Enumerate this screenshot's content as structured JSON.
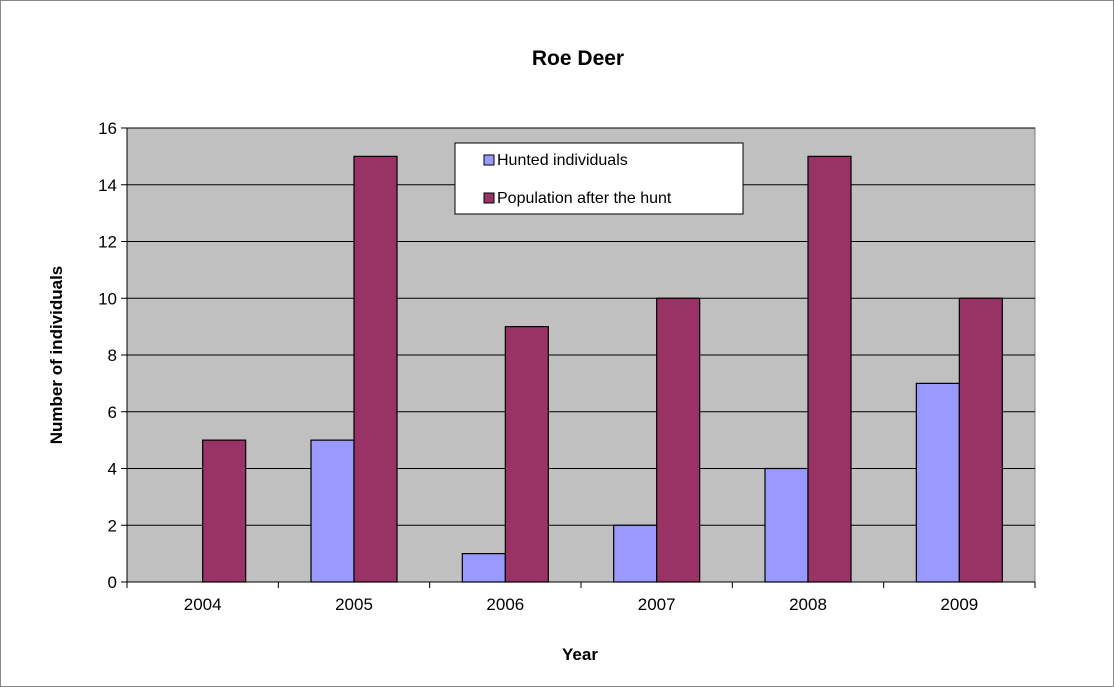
{
  "chart_data": {
    "type": "bar",
    "title": "Roe Deer",
    "xlabel": "Year",
    "ylabel": "Number of individuals",
    "categories": [
      "2004",
      "2005",
      "2006",
      "2007",
      "2008",
      "2009"
    ],
    "series": [
      {
        "name": "Hunted individuals",
        "values": [
          0,
          5,
          1,
          2,
          4,
          7
        ],
        "color": "#9999ff"
      },
      {
        "name": "Population after the hunt",
        "values": [
          5,
          15,
          9,
          10,
          15,
          10
        ],
        "color": "#993366"
      }
    ],
    "ylim": [
      0,
      16
    ],
    "yticks": [
      0,
      2,
      4,
      6,
      8,
      10,
      12,
      14,
      16
    ],
    "grid": true,
    "legend_position": "top-center",
    "plot_background": "#c0c0c0"
  }
}
